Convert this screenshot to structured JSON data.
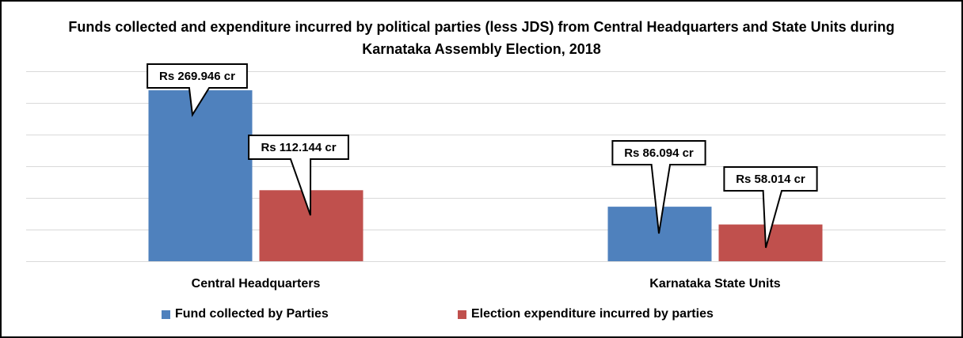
{
  "chart_data": {
    "type": "bar",
    "title": [
      "Funds collected and expenditure incurred by political parties (less JDS) from Central Headquarters and State Units during",
      "Karnataka Assembly Election, 2018"
    ],
    "categories": [
      "Central Headquarters",
      "Karnataka State Units"
    ],
    "series": [
      {
        "name": "Fund collected by Parties",
        "color": "#4F81BD",
        "values": [
          269.946,
          86.094
        ],
        "labels": [
          "Rs 269.946 cr",
          "Rs 86.094 cr"
        ]
      },
      {
        "name": "Election expenditure incurred by parties",
        "color": "#C0504D",
        "values": [
          112.144,
          58.014
        ],
        "labels": [
          "Rs 112.144 cr",
          "Rs 58.014 cr"
        ]
      }
    ],
    "xlabel": "",
    "ylabel": "",
    "ylim": [
      0,
      300
    ],
    "ytick_step": 50,
    "grid": true,
    "legend": "bottom"
  }
}
